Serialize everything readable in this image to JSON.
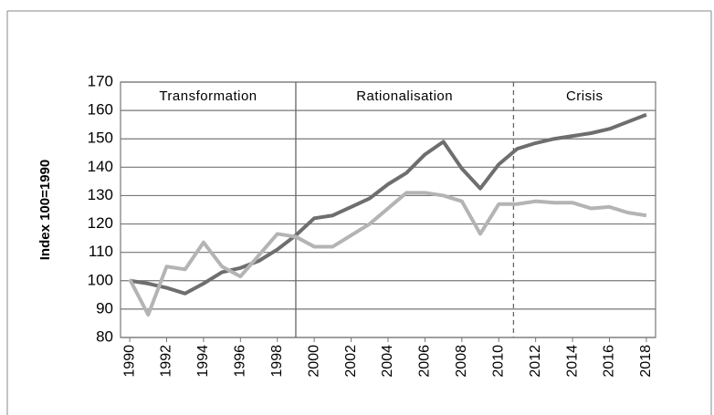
{
  "chart_data": {
    "type": "line",
    "ylabel": "Index 100=1990",
    "x": [
      1990,
      1991,
      1992,
      1993,
      1994,
      1995,
      1996,
      1997,
      1998,
      1999,
      2000,
      2001,
      2002,
      2003,
      2004,
      2005,
      2006,
      2007,
      2008,
      2009,
      2010,
      2011,
      2012,
      2013,
      2014,
      2015,
      2016,
      2017,
      2018
    ],
    "series": [
      {
        "color": "#6e6e6e",
        "values": [
          100,
          99,
          97.5,
          95.5,
          99,
          103,
          104.5,
          107,
          111,
          116,
          122,
          123,
          126,
          129,
          134,
          138,
          144.5,
          149,
          139.5,
          132.5,
          141,
          146.5,
          148.5,
          150,
          151,
          152,
          153.5,
          156,
          158.5
        ]
      },
      {
        "color": "#b4b4b4",
        "values": [
          100.5,
          88,
          105,
          104,
          113.5,
          105,
          101.5,
          109,
          116.5,
          115.5,
          112,
          112,
          116,
          120,
          125.5,
          131,
          131,
          130,
          128,
          116.5,
          127,
          127,
          128,
          127.5,
          127.5,
          125.5,
          126,
          124,
          123
        ]
      }
    ],
    "xlim": [
      1989.5,
      2018.5
    ],
    "xticks": [
      1990,
      1992,
      1994,
      1996,
      1998,
      2000,
      2002,
      2004,
      2006,
      2008,
      2010,
      2012,
      2014,
      2016,
      2018
    ],
    "ylim": [
      80,
      170
    ],
    "yticks": [
      80,
      90,
      100,
      110,
      120,
      130,
      140,
      150,
      160,
      170
    ],
    "grid": true,
    "periods": [
      {
        "label": "Transformation",
        "from": 1989.5,
        "to": 1999
      },
      {
        "label": "Rationalisation",
        "from": 1999,
        "to": 2010.8,
        "divider": "solid"
      },
      {
        "label": "Crisis",
        "from": 2010.8,
        "to": 2018.5,
        "divider": "dashed"
      }
    ]
  }
}
